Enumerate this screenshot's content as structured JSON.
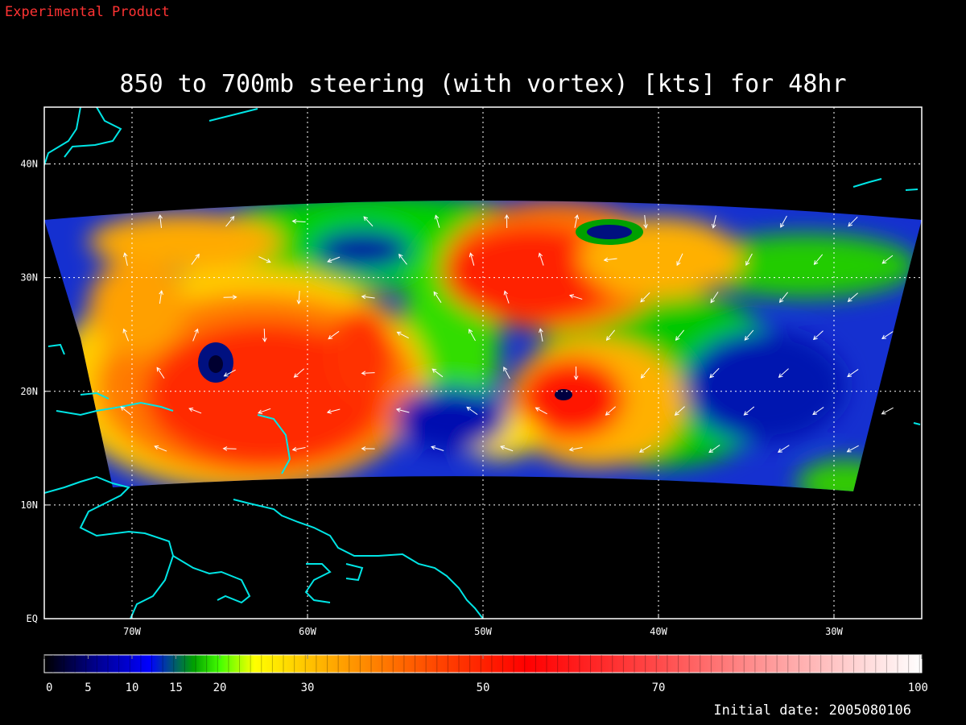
{
  "banner": "Experimental Product",
  "title": "850 to 700mb steering (with vortex) [kts] for 48hr",
  "footer": "Initial date: 2005080106",
  "map": {
    "lon_range": [
      -75,
      -25
    ],
    "lat_range": [
      0,
      45
    ],
    "lon_ticks": [
      {
        "value": -70,
        "label": "70W"
      },
      {
        "value": -60,
        "label": "60W"
      },
      {
        "value": -50,
        "label": "50W"
      },
      {
        "value": -40,
        "label": "40W"
      },
      {
        "value": -30,
        "label": "30W"
      }
    ],
    "lat_ticks": [
      {
        "value": 0,
        "label": "EQ"
      },
      {
        "value": 10,
        "label": "10N"
      },
      {
        "value": 20,
        "label": "20N"
      },
      {
        "value": 30,
        "label": "30N"
      },
      {
        "value": 40,
        "label": "40N"
      }
    ],
    "gridlines": true,
    "coastline_color": "#00e5e5",
    "vector_color": "#ffffff",
    "storm_centers": [
      {
        "lon": -65,
        "lat": 22.5
      },
      {
        "lon": -45.5,
        "lat": 19.8
      },
      {
        "lon": -42.5,
        "lat": 34.2
      }
    ]
  },
  "colorbar": {
    "min": 0,
    "max": 100,
    "tick_labels": [
      "0",
      "5",
      "10",
      "15",
      "20",
      "30",
      "50",
      "70",
      "100"
    ],
    "tick_values": [
      0,
      5,
      10,
      15,
      20,
      30,
      50,
      70,
      100
    ],
    "colors": [
      "#000000",
      "#0000c0",
      "#0000ff",
      "#00c000",
      "#00ff00",
      "#ffff00",
      "#ffa500",
      "#ff0000",
      "#ff6666",
      "#ffffff"
    ]
  }
}
